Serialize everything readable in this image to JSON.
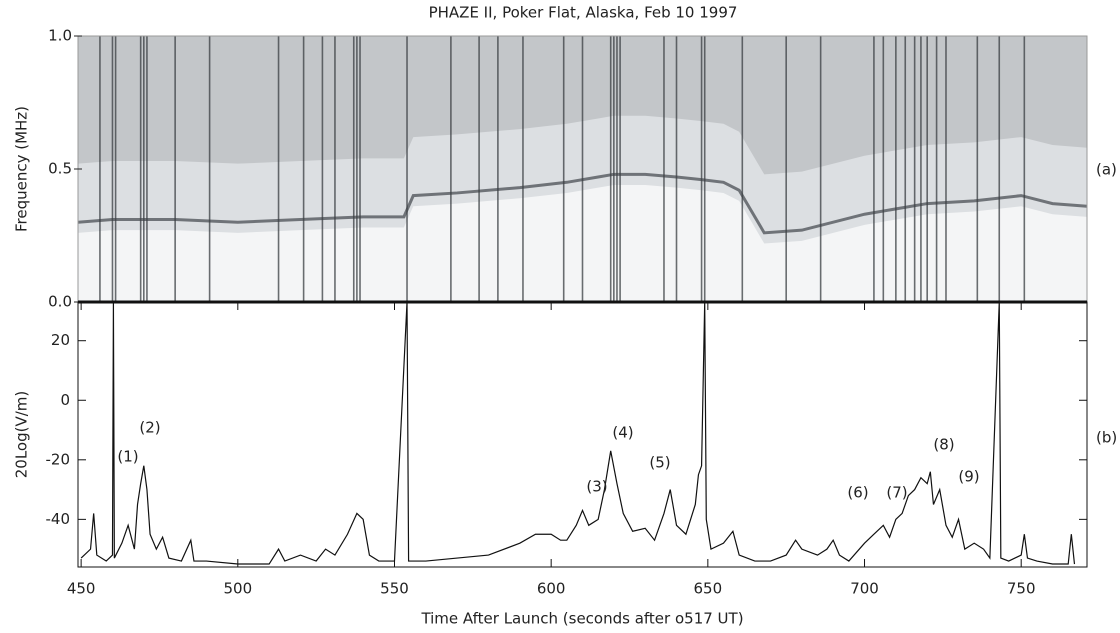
{
  "chart_data": [
    {
      "type": "spectrogram",
      "title": "PHAZE II, Poker Flat, Alaska, Feb 10 1997",
      "ylabel": "Frequency (MHz)",
      "panel_label": "(a)",
      "xlim": [
        449,
        771
      ],
      "ylim": [
        0,
        1
      ],
      "yticks": [
        {
          "value": 0,
          "label": "0.0"
        },
        0.5,
        {
          "value": 1,
          "label": "1.0"
        }
      ],
      "x": [
        449,
        460,
        480,
        500,
        520,
        540,
        553,
        556,
        570,
        590,
        605,
        615,
        620,
        630,
        640,
        648,
        655,
        660,
        668,
        680,
        700,
        720,
        735,
        750,
        760,
        771
      ],
      "values": [
        0.3,
        0.31,
        0.31,
        0.3,
        0.31,
        0.32,
        0.32,
        0.4,
        0.41,
        0.43,
        0.45,
        0.47,
        0.48,
        0.48,
        0.47,
        0.46,
        0.45,
        0.42,
        0.26,
        0.27,
        0.33,
        0.37,
        0.38,
        0.4,
        0.37,
        0.36
      ],
      "spikes": [
        456,
        460,
        461,
        469,
        470,
        471,
        480,
        491,
        513,
        521,
        527,
        531,
        537,
        538,
        539,
        554,
        568,
        577,
        583,
        591,
        604,
        610,
        619,
        620,
        621,
        622,
        636,
        640,
        648,
        649,
        661,
        675,
        686,
        703,
        706,
        710,
        713,
        716,
        718,
        720,
        723,
        726,
        736,
        743,
        751
      ],
      "color": "#c3c6c9"
    },
    {
      "type": "line",
      "xlabel": "Time After Launch (seconds after o517 UT)",
      "ylabel": "20Log(V/m)",
      "panel_label": "(b)",
      "color": "#111111",
      "xlim": [
        449,
        771
      ],
      "ylim": [
        -56,
        33
      ],
      "xticks": [
        450,
        500,
        550,
        600,
        650,
        700,
        750
      ],
      "yticks": [
        20,
        0,
        -20,
        -40
      ],
      "annotations": [
        "(1)",
        "(2)",
        "(3)",
        "(4)",
        "(5)",
        "(6)",
        "(7)",
        "(8)",
        "(9)"
      ],
      "x": [
        450,
        453,
        454,
        455,
        458,
        460,
        460.3,
        460.6,
        463,
        465,
        467,
        468,
        469,
        470,
        471,
        472,
        474,
        476,
        478,
        482,
        485,
        486,
        490,
        500,
        510,
        513,
        515,
        520,
        525,
        528,
        531,
        535,
        538,
        540,
        542,
        545,
        550,
        554,
        554.5,
        560,
        570,
        580,
        590,
        595,
        600,
        603,
        605,
        608,
        610,
        612,
        615,
        617,
        619,
        621,
        623,
        626,
        630,
        633,
        636,
        638,
        640,
        643,
        646,
        647,
        648,
        649,
        649.5,
        651,
        655,
        658,
        660,
        665,
        670,
        675,
        678,
        680,
        685,
        688,
        690,
        692,
        695,
        700,
        703,
        706,
        708,
        710,
        712,
        714,
        716,
        718,
        720,
        721,
        722,
        724,
        726,
        728,
        730,
        732,
        735,
        738,
        740,
        743,
        743.5,
        746,
        750,
        751,
        752,
        755,
        760,
        765,
        766,
        767
      ],
      "values": [
        -53,
        -50,
        -38,
        -52,
        -54,
        -52,
        33,
        -53,
        -48,
        -42,
        -50,
        -35,
        -28,
        -22,
        -30,
        -45,
        -50,
        -46,
        -53,
        -54,
        -47,
        -54,
        -54,
        -55,
        -55,
        -50,
        -54,
        -52,
        -54,
        -50,
        -52,
        -45,
        -38,
        -40,
        -52,
        -54,
        -54,
        33,
        -54,
        -54,
        -53,
        -52,
        -48,
        -45,
        -45,
        -47,
        -47,
        -42,
        -37,
        -42,
        -40,
        -30,
        -17,
        -28,
        -38,
        -44,
        -43,
        -47,
        -38,
        -30,
        -42,
        -45,
        -35,
        -25,
        -22,
        33,
        -40,
        -50,
        -48,
        -44,
        -52,
        -54,
        -54,
        -52,
        -47,
        -50,
        -52,
        -50,
        -47,
        -52,
        -54,
        -48,
        -45,
        -42,
        -46,
        -40,
        -38,
        -32,
        -30,
        -26,
        -28,
        -24,
        -35,
        -30,
        -42,
        -46,
        -40,
        -50,
        -48,
        -50,
        -53,
        33,
        -53,
        -54,
        -52,
        -45,
        -53,
        -54,
        -55,
        -55,
        -45,
        -55
      ]
    }
  ]
}
